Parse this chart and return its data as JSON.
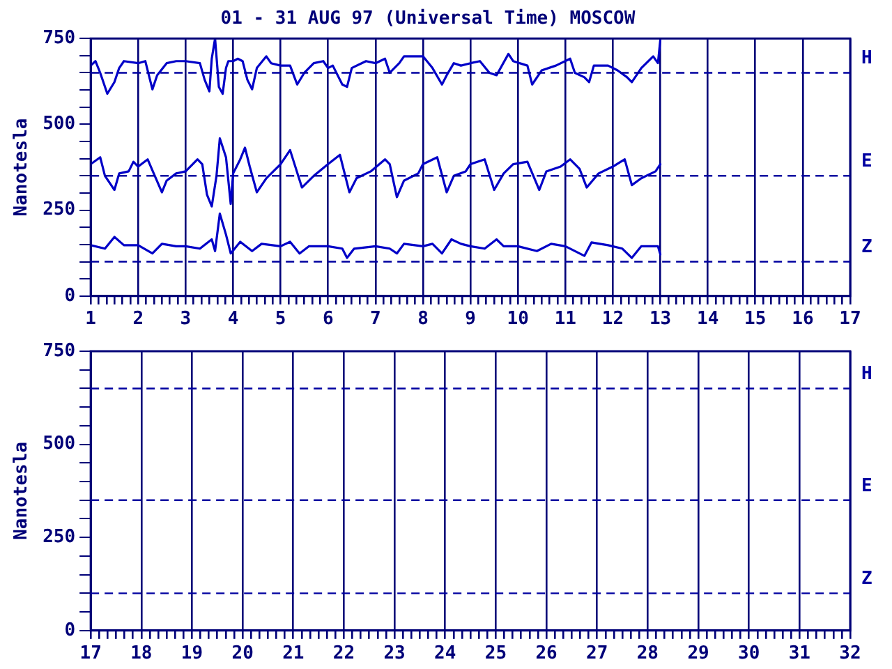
{
  "chart_data": [
    {
      "type": "line",
      "title": "01 - 31 AUG 97 (Universal Time) MOSCOW",
      "ylabel": "Nanotesla",
      "grid": "x",
      "xlim": [
        1,
        17
      ],
      "ylim": [
        0,
        750
      ],
      "xticks": [
        1,
        {
          "value": 1.167,
          "label": null
        },
        {
          "value": 1.333,
          "label": null
        },
        {
          "value": 1.5,
          "label": null
        },
        {
          "value": 1.667,
          "label": null
        },
        {
          "value": 1.833,
          "label": null
        },
        2,
        {
          "value": 2.167,
          "label": null
        },
        {
          "value": 2.333,
          "label": null
        },
        {
          "value": 2.5,
          "label": null
        },
        {
          "value": 2.667,
          "label": null
        },
        {
          "value": 2.833,
          "label": null
        },
        3,
        {
          "value": 3.167,
          "label": null
        },
        {
          "value": 3.333,
          "label": null
        },
        {
          "value": 3.5,
          "label": null
        },
        {
          "value": 3.667,
          "label": null
        },
        {
          "value": 3.833,
          "label": null
        },
        4,
        {
          "value": 4.167,
          "label": null
        },
        {
          "value": 4.333,
          "label": null
        },
        {
          "value": 4.5,
          "label": null
        },
        {
          "value": 4.667,
          "label": null
        },
        {
          "value": 4.833,
          "label": null
        },
        5,
        {
          "value": 5.167,
          "label": null
        },
        {
          "value": 5.333,
          "label": null
        },
        {
          "value": 5.5,
          "label": null
        },
        {
          "value": 5.667,
          "label": null
        },
        {
          "value": 5.833,
          "label": null
        },
        6,
        {
          "value": 6.167,
          "label": null
        },
        {
          "value": 6.333,
          "label": null
        },
        {
          "value": 6.5,
          "label": null
        },
        {
          "value": 6.667,
          "label": null
        },
        {
          "value": 6.833,
          "label": null
        },
        7,
        {
          "value": 7.167,
          "label": null
        },
        {
          "value": 7.333,
          "label": null
        },
        {
          "value": 7.5,
          "label": null
        },
        {
          "value": 7.667,
          "label": null
        },
        {
          "value": 7.833,
          "label": null
        },
        8,
        {
          "value": 8.167,
          "label": null
        },
        {
          "value": 8.333,
          "label": null
        },
        {
          "value": 8.5,
          "label": null
        },
        {
          "value": 8.667,
          "label": null
        },
        {
          "value": 8.833,
          "label": null
        },
        9,
        {
          "value": 9.167,
          "label": null
        },
        {
          "value": 9.333,
          "label": null
        },
        {
          "value": 9.5,
          "label": null
        },
        {
          "value": 9.667,
          "label": null
        },
        {
          "value": 9.833,
          "label": null
        },
        10,
        {
          "value": 10.167,
          "label": null
        },
        {
          "value": 10.333,
          "label": null
        },
        {
          "value": 10.5,
          "label": null
        },
        {
          "value": 10.667,
          "label": null
        },
        {
          "value": 10.833,
          "label": null
        },
        11,
        {
          "value": 11.167,
          "label": null
        },
        {
          "value": 11.333,
          "label": null
        },
        {
          "value": 11.5,
          "label": null
        },
        {
          "value": 11.667,
          "label": null
        },
        {
          "value": 11.833,
          "label": null
        },
        12,
        {
          "value": 12.167,
          "label": null
        },
        {
          "value": 12.333,
          "label": null
        },
        {
          "value": 12.5,
          "label": null
        },
        {
          "value": 12.667,
          "label": null
        },
        {
          "value": 12.833,
          "label": null
        },
        13,
        {
          "value": 13.167,
          "label": null
        },
        {
          "value": 13.333,
          "label": null
        },
        {
          "value": 13.5,
          "label": null
        },
        {
          "value": 13.667,
          "label": null
        },
        {
          "value": 13.833,
          "label": null
        },
        14,
        {
          "value": 14.167,
          "label": null
        },
        {
          "value": 14.333,
          "label": null
        },
        {
          "value": 14.5,
          "label": null
        },
        {
          "value": 14.667,
          "label": null
        },
        {
          "value": 14.833,
          "label": null
        },
        15,
        {
          "value": 15.167,
          "label": null
        },
        {
          "value": 15.333,
          "label": null
        },
        {
          "value": 15.5,
          "label": null
        },
        {
          "value": 15.667,
          "label": null
        },
        {
          "value": 15.833,
          "label": null
        },
        16,
        {
          "value": 16.167,
          "label": null
        },
        {
          "value": 16.333,
          "label": null
        },
        {
          "value": 16.5,
          "label": null
        },
        {
          "value": 16.667,
          "label": null
        },
        {
          "value": 16.833,
          "label": null
        },
        17
      ],
      "yticks": [
        0,
        {
          "value": 50,
          "label": null
        },
        {
          "value": 100,
          "label": null
        },
        {
          "value": 150,
          "label": null
        },
        {
          "value": 200,
          "label": null
        },
        250,
        {
          "value": 300,
          "label": null
        },
        {
          "value": 350,
          "label": null
        },
        {
          "value": 400,
          "label": null
        },
        {
          "value": 450,
          "label": null
        },
        500,
        {
          "value": 550,
          "label": null
        },
        {
          "value": 600,
          "label": null
        },
        {
          "value": 650,
          "label": null
        },
        {
          "value": 700,
          "label": null
        },
        750
      ],
      "ref_lines": [
        {
          "axis": "y",
          "value": 650,
          "label": "H",
          "color": "#0000a0",
          "line_style": "dashed"
        },
        {
          "axis": "y",
          "value": 350,
          "label": "E",
          "color": "#0000a0",
          "line_style": "dashed"
        },
        {
          "axis": "y",
          "value": 100,
          "label": "Z",
          "color": "#0000a0",
          "line_style": "dashed"
        }
      ],
      "series": [
        {
          "color": "#0000c8",
          "x": [
            1,
            1.1,
            1.2,
            1.35,
            1.5,
            1.6,
            1.7,
            2,
            2.15,
            2.3,
            2.4,
            2.6,
            2.8,
            3,
            3.3,
            3.4,
            3.5,
            3.55,
            3.62,
            3.7,
            3.78,
            3.85,
            3.9,
            4,
            4.1,
            4.2,
            4.3,
            4.4,
            4.5,
            4.7,
            4.8,
            5,
            5.2,
            5.35,
            5.5,
            5.7,
            5.9,
            6,
            6.1,
            6.3,
            6.4,
            6.5,
            6.8,
            7,
            7.2,
            7.3,
            7.5,
            7.6,
            7.8,
            8,
            8.2,
            8.4,
            8.5,
            8.65,
            8.8,
            9,
            9.2,
            9.4,
            9.55,
            9.8,
            9.9,
            10.2,
            10.3,
            10.5,
            10.8,
            11.1,
            11.2,
            11.4,
            11.5,
            11.6,
            11.9,
            12.1,
            12.3,
            12.4,
            12.6,
            12.85,
            12.95,
            13
          ],
          "values": [
            671,
            684,
            650,
            589,
            623,
            664,
            684,
            678,
            684,
            602,
            643,
            678,
            684,
            684,
            678,
            630,
            596,
            691,
            750,
            609,
            589,
            664,
            684,
            684,
            691,
            684,
            630,
            602,
            664,
            698,
            678,
            671,
            671,
            616,
            650,
            678,
            684,
            664,
            671,
            616,
            609,
            664,
            684,
            678,
            691,
            650,
            678,
            698,
            698,
            698,
            664,
            616,
            643,
            678,
            671,
            678,
            684,
            650,
            643,
            705,
            684,
            671,
            616,
            657,
            671,
            691,
            650,
            637,
            623,
            671,
            671,
            657,
            637,
            623,
            664,
            698,
            678,
            746
          ]
        },
        {
          "color": "#0000c8",
          "x": [
            1,
            1.2,
            1.3,
            1.5,
            1.6,
            1.8,
            1.9,
            2,
            2.2,
            2.35,
            2.5,
            2.6,
            2.8,
            3,
            3.25,
            3.35,
            3.45,
            3.55,
            3.65,
            3.72,
            3.85,
            3.95,
            4,
            4.15,
            4.25,
            4.35,
            4.5,
            4.7,
            5,
            5.2,
            5.45,
            5.7,
            6,
            6.25,
            6.45,
            6.6,
            6.9,
            7.2,
            7.3,
            7.45,
            7.6,
            7.9,
            8,
            8.3,
            8.5,
            8.65,
            8.9,
            9,
            9.3,
            9.5,
            9.7,
            9.9,
            10.2,
            10.45,
            10.6,
            10.9,
            11.1,
            11.3,
            11.45,
            11.7,
            12,
            12.25,
            12.4,
            12.6,
            12.9,
            13
          ],
          "values": [
            384,
            404,
            350,
            309,
            357,
            363,
            391,
            377,
            398,
            350,
            302,
            336,
            357,
            363,
            398,
            384,
            295,
            261,
            350,
            459,
            404,
            268,
            357,
            398,
            432,
            377,
            302,
            343,
            384,
            425,
            316,
            350,
            384,
            411,
            302,
            343,
            363,
            398,
            384,
            288,
            336,
            357,
            384,
            404,
            302,
            350,
            363,
            384,
            398,
            309,
            357,
            384,
            391,
            309,
            363,
            377,
            398,
            370,
            316,
            357,
            377,
            398,
            323,
            343,
            363,
            384
          ]
        },
        {
          "color": "#0000c8",
          "x": [
            1,
            1.3,
            1.5,
            1.7,
            2,
            2.3,
            2.5,
            2.8,
            3,
            3.3,
            3.55,
            3.62,
            3.72,
            3.85,
            3.95,
            4.15,
            4.4,
            4.6,
            5,
            5.2,
            5.4,
            5.6,
            6,
            6.3,
            6.4,
            6.55,
            7,
            7.3,
            7.45,
            7.6,
            8,
            8.2,
            8.4,
            8.6,
            8.8,
            9,
            9.3,
            9.55,
            9.7,
            10,
            10.4,
            10.7,
            11,
            11.4,
            11.55,
            11.9,
            12.2,
            12.4,
            12.6,
            12.95,
            13
          ],
          "values": [
            148,
            138,
            172,
            148,
            148,
            124,
            152,
            145,
            145,
            138,
            165,
            131,
            240,
            179,
            124,
            158,
            131,
            152,
            145,
            158,
            124,
            145,
            145,
            138,
            111,
            138,
            145,
            138,
            124,
            152,
            145,
            152,
            124,
            165,
            152,
            145,
            138,
            165,
            145,
            145,
            131,
            152,
            145,
            117,
            156,
            148,
            138,
            111,
            145,
            145,
            121
          ]
        }
      ]
    },
    {
      "type": "line",
      "ylabel": "Nanotesla",
      "grid": "x",
      "xlim": [
        17,
        32
      ],
      "ylim": [
        0,
        750
      ],
      "xticks": [
        17,
        {
          "value": 17.167,
          "label": null
        },
        {
          "value": 17.333,
          "label": null
        },
        {
          "value": 17.5,
          "label": null
        },
        {
          "value": 17.667,
          "label": null
        },
        {
          "value": 17.833,
          "label": null
        },
        18,
        {
          "value": 18.167,
          "label": null
        },
        {
          "value": 18.333,
          "label": null
        },
        {
          "value": 18.5,
          "label": null
        },
        {
          "value": 18.667,
          "label": null
        },
        {
          "value": 18.833,
          "label": null
        },
        19,
        {
          "value": 19.167,
          "label": null
        },
        {
          "value": 19.333,
          "label": null
        },
        {
          "value": 19.5,
          "label": null
        },
        {
          "value": 19.667,
          "label": null
        },
        {
          "value": 19.833,
          "label": null
        },
        20,
        {
          "value": 20.167,
          "label": null
        },
        {
          "value": 20.333,
          "label": null
        },
        {
          "value": 20.5,
          "label": null
        },
        {
          "value": 20.667,
          "label": null
        },
        {
          "value": 20.833,
          "label": null
        },
        21,
        {
          "value": 21.167,
          "label": null
        },
        {
          "value": 21.333,
          "label": null
        },
        {
          "value": 21.5,
          "label": null
        },
        {
          "value": 21.667,
          "label": null
        },
        {
          "value": 21.833,
          "label": null
        },
        22,
        {
          "value": 22.167,
          "label": null
        },
        {
          "value": 22.333,
          "label": null
        },
        {
          "value": 22.5,
          "label": null
        },
        {
          "value": 22.667,
          "label": null
        },
        {
          "value": 22.833,
          "label": null
        },
        23,
        {
          "value": 23.167,
          "label": null
        },
        {
          "value": 23.333,
          "label": null
        },
        {
          "value": 23.5,
          "label": null
        },
        {
          "value": 23.667,
          "label": null
        },
        {
          "value": 23.833,
          "label": null
        },
        24,
        {
          "value": 24.167,
          "label": null
        },
        {
          "value": 24.333,
          "label": null
        },
        {
          "value": 24.5,
          "label": null
        },
        {
          "value": 24.667,
          "label": null
        },
        {
          "value": 24.833,
          "label": null
        },
        25,
        {
          "value": 25.167,
          "label": null
        },
        {
          "value": 25.333,
          "label": null
        },
        {
          "value": 25.5,
          "label": null
        },
        {
          "value": 25.667,
          "label": null
        },
        {
          "value": 25.833,
          "label": null
        },
        26,
        {
          "value": 26.167,
          "label": null
        },
        {
          "value": 26.333,
          "label": null
        },
        {
          "value": 26.5,
          "label": null
        },
        {
          "value": 26.667,
          "label": null
        },
        {
          "value": 26.833,
          "label": null
        },
        27,
        {
          "value": 27.167,
          "label": null
        },
        {
          "value": 27.333,
          "label": null
        },
        {
          "value": 27.5,
          "label": null
        },
        {
          "value": 27.667,
          "label": null
        },
        {
          "value": 27.833,
          "label": null
        },
        28,
        {
          "value": 28.167,
          "label": null
        },
        {
          "value": 28.333,
          "label": null
        },
        {
          "value": 28.5,
          "label": null
        },
        {
          "value": 28.667,
          "label": null
        },
        {
          "value": 28.833,
          "label": null
        },
        29,
        {
          "value": 29.167,
          "label": null
        },
        {
          "value": 29.333,
          "label": null
        },
        {
          "value": 29.5,
          "label": null
        },
        {
          "value": 29.667,
          "label": null
        },
        {
          "value": 29.833,
          "label": null
        },
        30,
        {
          "value": 30.167,
          "label": null
        },
        {
          "value": 30.333,
          "label": null
        },
        {
          "value": 30.5,
          "label": null
        },
        {
          "value": 30.667,
          "label": null
        },
        {
          "value": 30.833,
          "label": null
        },
        31,
        {
          "value": 31.167,
          "label": null
        },
        {
          "value": 31.333,
          "label": null
        },
        {
          "value": 31.5,
          "label": null
        },
        {
          "value": 31.667,
          "label": null
        },
        {
          "value": 31.833,
          "label": null
        },
        32
      ],
      "yticks": [
        0,
        {
          "value": 50,
          "label": null
        },
        {
          "value": 100,
          "label": null
        },
        {
          "value": 150,
          "label": null
        },
        {
          "value": 200,
          "label": null
        },
        250,
        {
          "value": 300,
          "label": null
        },
        {
          "value": 350,
          "label": null
        },
        {
          "value": 400,
          "label": null
        },
        {
          "value": 450,
          "label": null
        },
        500,
        {
          "value": 550,
          "label": null
        },
        {
          "value": 600,
          "label": null
        },
        {
          "value": 650,
          "label": null
        },
        {
          "value": 700,
          "label": null
        },
        750
      ],
      "ref_lines": [
        {
          "axis": "y",
          "value": 650,
          "label": "H",
          "color": "#0000a0",
          "line_style": "dashed"
        },
        {
          "axis": "y",
          "value": 350,
          "label": "E",
          "color": "#0000a0",
          "line_style": "dashed"
        },
        {
          "axis": "y",
          "value": 100,
          "label": "Z",
          "color": "#0000a0",
          "line_style": "dashed"
        }
      ]
    }
  ]
}
